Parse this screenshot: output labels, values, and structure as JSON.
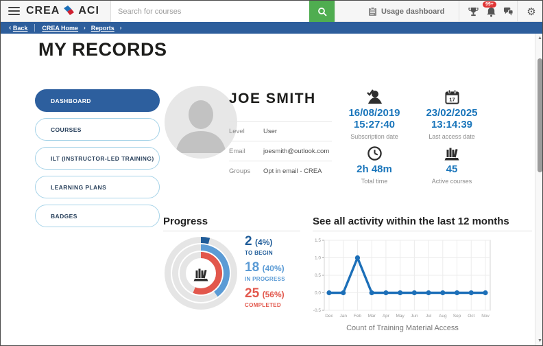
{
  "topbar": {
    "logo_left": "CREA",
    "logo_right": "ACI",
    "search_placeholder": "Search for courses",
    "usage_dashboard_label": "Usage dashboard",
    "notification_badge": "99+"
  },
  "breadcrumb": {
    "back_label": "Back",
    "items": [
      {
        "label": "CREA Home"
      },
      {
        "label": "Reports"
      }
    ]
  },
  "page_title": "MY RECORDS",
  "sidebar": {
    "items": [
      {
        "label": "DASHBOARD",
        "active": true
      },
      {
        "label": "COURSES",
        "active": false
      },
      {
        "label": "ILT (INSTRUCTOR-LED TRAINING)",
        "active": false
      },
      {
        "label": "LEARNING PLANS",
        "active": false
      },
      {
        "label": "BADGES",
        "active": false
      }
    ]
  },
  "profile": {
    "name": "JOE SMITH",
    "fields": [
      {
        "label": "Level",
        "value": "User"
      },
      {
        "label": "Email",
        "value": "joesmith@outlook.com"
      },
      {
        "label": "Groups",
        "value": "Opt in email - CREA"
      }
    ]
  },
  "stats": [
    {
      "icon": "user-check-icon",
      "value": "16/08/2019",
      "value2": "15:27:40",
      "caption": "Subscription date"
    },
    {
      "icon": "calendar-icon",
      "value": "23/02/2025",
      "value2": "13:14:39",
      "caption": "Last access date",
      "icon_day": "17"
    },
    {
      "icon": "clock-icon",
      "value": "2h 48m",
      "caption": "Total time"
    },
    {
      "icon": "books-icon",
      "value": "45",
      "caption": "Active courses"
    }
  ],
  "progress": {
    "title": "Progress",
    "legend": [
      {
        "count": "2",
        "percent": "(4%)",
        "label": "TO BEGIN",
        "color": "#1f5c99"
      },
      {
        "count": "18",
        "percent": "(40%)",
        "label": "IN PROGRESS",
        "color": "#5b9bd5"
      },
      {
        "count": "25",
        "percent": "(56%)",
        "label": "COMPLETED",
        "color": "#e2574c"
      }
    ],
    "segments": [
      {
        "name": "to_begin",
        "pct": 4,
        "color": "#1f5c99"
      },
      {
        "name": "in_progress",
        "pct": 40,
        "color": "#5b9bd5"
      },
      {
        "name": "completed",
        "pct": 56,
        "color": "#e2574c"
      }
    ]
  },
  "activity": {
    "title": "See all activity within the last 12 months"
  },
  "chart_data": {
    "type": "line",
    "categories": [
      "Dec",
      "Jan",
      "Feb",
      "Mar",
      "Apr",
      "May",
      "Jun",
      "Jul",
      "Aug",
      "Sep",
      "Oct",
      "Nov"
    ],
    "values": [
      0,
      0,
      1,
      0,
      0,
      0,
      0,
      0,
      0,
      0,
      0,
      0
    ],
    "title": "See all activity within the last 12 months",
    "xlabel": "Count of Training Material Access",
    "ylabel": "",
    "ylim": [
      -0.5,
      1.5
    ],
    "yticks": [
      1.5,
      1.0,
      0.5,
      0.0,
      -0.5
    ],
    "grid": true,
    "line_color": "#1c6fb8"
  },
  "colors": {
    "brand_bar_blue": "#2d5e9c",
    "accent_blue": "#1b76bb",
    "light_blue": "#5b9bd5",
    "dark_blue": "#1f5c99",
    "status_red": "#e2574c",
    "search_green": "#4fad50",
    "badge_red": "#e03535"
  }
}
